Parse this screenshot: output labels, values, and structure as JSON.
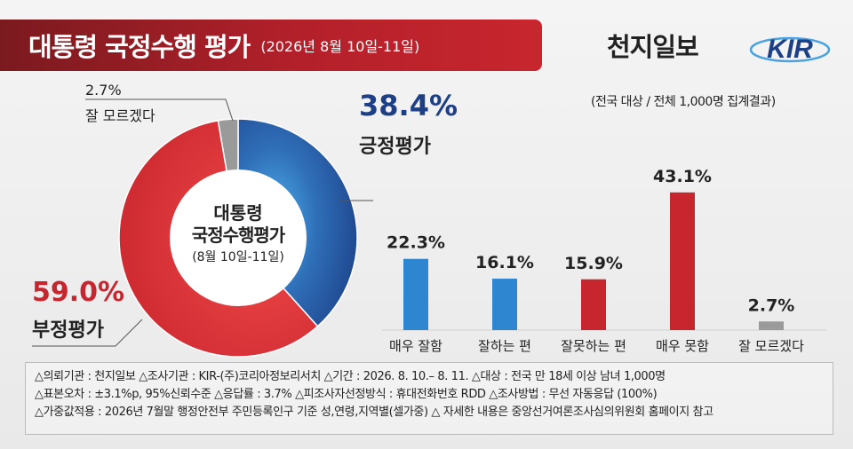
{
  "header": {
    "title": "대통령 국정수행 평가",
    "subtitle": "(2026년 8월 10일-11일)",
    "brand": "천지일보",
    "logo_text": "KIR",
    "survey_note": "(전국 대상 / 전체 1,000명 집계결과)"
  },
  "colors": {
    "positive": "#1c3f86",
    "positive_light": "#2f86d0",
    "negative": "#c8262e",
    "unknown": "#9a9a9a",
    "title_bg": "#b3202a"
  },
  "chart_data": [
    {
      "type": "pie",
      "center_label": [
        "대통령",
        "국정수행평가",
        "(8월 10일-11일)"
      ],
      "slices": [
        {
          "label": "긍정평가",
          "value": 38.4,
          "value_label": "38.4%"
        },
        {
          "label": "부정평가",
          "value": 59.0,
          "value_label": "59.0%"
        },
        {
          "label": "잘 모르겠다",
          "value": 2.7,
          "value_label": "2.7%"
        }
      ]
    },
    {
      "type": "bar",
      "categories": [
        "매우 잘함",
        "잘하는 편",
        "잘못하는 편",
        "매우 못함",
        "잘 모르겠다"
      ],
      "values": [
        22.3,
        16.1,
        15.9,
        43.1,
        2.7
      ],
      "value_labels": [
        "22.3%",
        "16.1%",
        "15.9%",
        "43.1%",
        "2.7%"
      ],
      "colors": [
        "#2f86d0",
        "#2f86d0",
        "#c8262e",
        "#c8262e",
        "#9a9a9a"
      ],
      "ylim": [
        0,
        50
      ]
    }
  ],
  "footer": {
    "line1": "△의뢰기관 : 천지일보   △조사기관 : KIR-(주)코리아정보리서치     △기간 : 2026. 8. 10.– 8. 11.  △대상 : 전국 만 18세 이상 남녀 1,000명",
    "line2": "△표본오차 : ±3.1%p, 95%신뢰수준  △응답률 : 3.7%  △피조사자선정방식 : 휴대전화번호 RDD   △조사방법 : 무선 자동응답 (100%)",
    "line3": "△가중값적용 : 2026년 7월말 행정안전부 주민등록인구 기준 성,연령,지역별(셀가중)  △ 자세한 내용은 중앙선거여론조사심의위원회 홈페이지 참고"
  }
}
